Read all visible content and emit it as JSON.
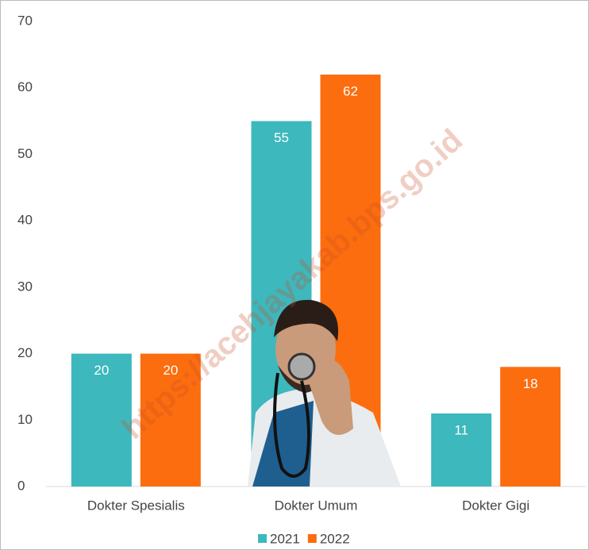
{
  "chart_data": {
    "type": "bar",
    "categories": [
      "Dokter Spesialis",
      "Dokter Umum",
      "Dokter Gigi"
    ],
    "series": [
      {
        "name": "2021",
        "color": "#3db8bd",
        "values": [
          20,
          55,
          11
        ]
      },
      {
        "name": "2022",
        "color": "#fb6d0e",
        "values": [
          20,
          62,
          18
        ]
      }
    ],
    "ylim": [
      0,
      70
    ],
    "yticks": [
      0,
      10,
      20,
      30,
      40,
      50,
      60,
      70
    ],
    "grid": false,
    "legend": "bottom",
    "watermark": "https://acehjayakab.bps.go.id"
  }
}
